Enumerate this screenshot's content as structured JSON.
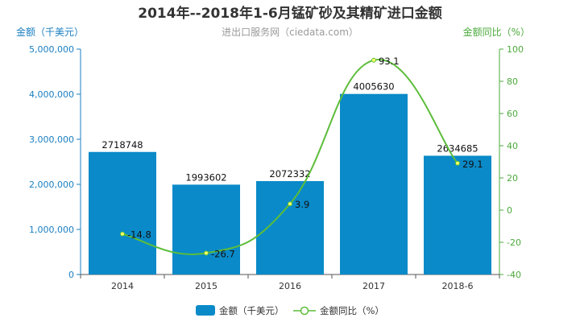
{
  "chart_data": {
    "type": "bar",
    "title": "2014年--2018年1-6月锰矿砂及其精矿进口金额",
    "subtitle": "进出口服务网（ciedata.com）",
    "categories": [
      "2014",
      "2015",
      "2016",
      "2017",
      "2018-6"
    ],
    "series": [
      {
        "name": "金额（千美元）",
        "type": "bar",
        "axis": "left",
        "values": [
          2718748,
          1993602,
          2072332,
          4005630,
          2634685
        ],
        "labels": [
          "2718748",
          "1993602",
          "2072332",
          "4005630",
          "2634685"
        ],
        "color": "#0a8ac8"
      },
      {
        "name": "金额同比（%）",
        "type": "line",
        "axis": "right",
        "values": [
          -14.8,
          -26.7,
          3.9,
          93.1,
          29.1
        ],
        "labels": [
          "-14.8",
          "-26.7",
          "3.9",
          "93.1",
          "29.1"
        ],
        "color": "#5cbd3a"
      }
    ],
    "ylabel_left": "金额（千美元）",
    "ylabel_right": "金额同比（%）",
    "ylim_left": [
      0,
      5000000
    ],
    "ylim_right": [
      -40,
      100
    ],
    "yticks_left": [
      "0",
      "1,000,000",
      "2,000,000",
      "3,000,000",
      "4,000,000",
      "5,000,000"
    ],
    "yticks_right": [
      "-40",
      "-20",
      "0",
      "20",
      "40",
      "60",
      "80",
      "100"
    ],
    "legend_position": "bottom-center",
    "grid": false,
    "colors": {
      "left_axis": "#1a7fc1",
      "right_axis": "#4caa3c"
    }
  }
}
